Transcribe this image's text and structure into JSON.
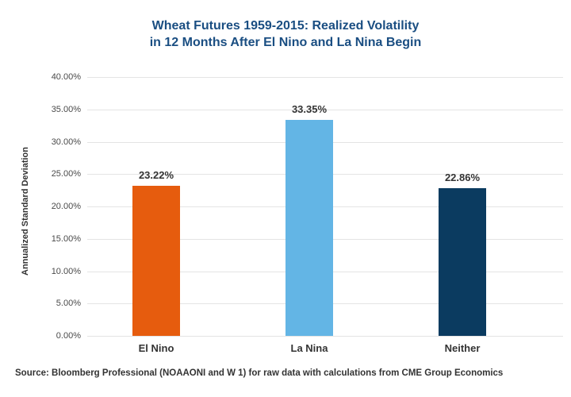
{
  "chart_data": {
    "type": "bar",
    "title_line1": "Wheat Futures 1959-2015: Realized Volatility",
    "title_line2": "in 12 Months After El Nino and La Nina Begin",
    "title_color": "#1A4E82",
    "ylabel": "Annualized Standard Deviation",
    "categories": [
      "El Nino",
      "La Nina",
      "Neither"
    ],
    "values": [
      23.22,
      33.35,
      22.86
    ],
    "value_labels": [
      "23.22%",
      "33.35%",
      "22.86%"
    ],
    "bar_colors": [
      "#E65C0E",
      "#63B5E5",
      "#0B3B60"
    ],
    "ylim": [
      0,
      40
    ],
    "ytick_step": 5,
    "ytick_labels": [
      "0.00%",
      "5.00%",
      "10.00%",
      "15.00%",
      "20.00%",
      "25.00%",
      "30.00%",
      "35.00%",
      "40.00%"
    ],
    "grid": true,
    "legend": "none",
    "source": "Source: Bloomberg Professional (NOAAONI and W 1) for raw data with calculations from CME Group Economics"
  }
}
